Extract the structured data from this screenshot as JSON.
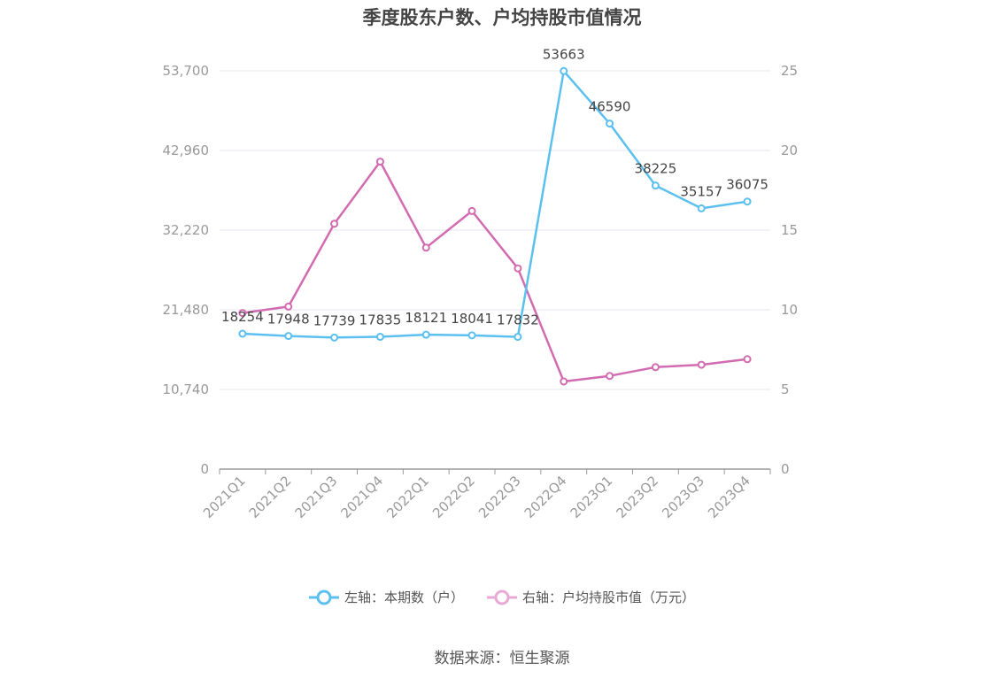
{
  "title": "季度股东户数、户均持股市值情况",
  "source": "数据来源：恒生聚源",
  "colors": {
    "left_series": "#5bc0ef",
    "right_series": "#d36bb1",
    "grid": "#e4e6ef",
    "axis": "#999999"
  },
  "chart_data": {
    "type": "line",
    "title": "季度股东户数、户均持股市值情况",
    "categories": [
      "2021Q1",
      "2021Q2",
      "2021Q3",
      "2021Q4",
      "2022Q1",
      "2022Q2",
      "2022Q3",
      "2022Q4",
      "2023Q1",
      "2023Q2",
      "2023Q3",
      "2023Q4"
    ],
    "left_axis": {
      "ticks": [
        "0",
        "10,740",
        "21,480",
        "32,220",
        "42,960",
        "53,700"
      ],
      "ylim": [
        0,
        53700
      ]
    },
    "right_axis": {
      "ticks": [
        "0",
        "5",
        "10",
        "15",
        "20",
        "25"
      ],
      "ylim": [
        0,
        25
      ]
    },
    "series": [
      {
        "name": "左轴：本期数（户）",
        "axis": "left",
        "values": [
          18254,
          17948,
          17739,
          17835,
          18121,
          18041,
          17832,
          53663,
          46590,
          38225,
          35157,
          36075
        ],
        "labels": [
          "18254",
          "17948",
          "17739",
          "17835",
          "18121",
          "18041",
          "17832",
          "53663",
          "46590",
          "38225",
          "35157",
          "36075"
        ]
      },
      {
        "name": "右轴：户均持股市值（万元）",
        "axis": "right",
        "values": [
          9.8,
          10.2,
          15.4,
          19.3,
          13.9,
          16.2,
          12.6,
          5.5,
          5.85,
          6.4,
          6.55,
          6.9
        ]
      }
    ],
    "grid": true,
    "legend_position": "bottom-center"
  }
}
